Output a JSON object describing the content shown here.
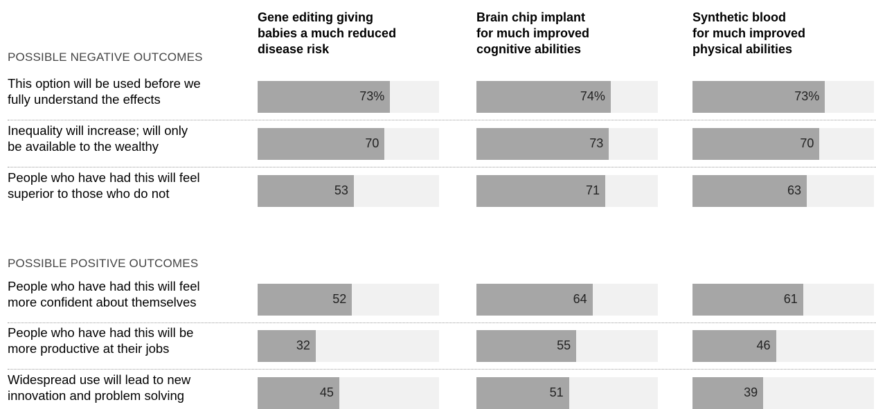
{
  "chart_data": {
    "type": "bar",
    "columns": [
      "Gene editing giving\nbabies a much reduced\ndisease risk",
      "Brain chip implant\nfor much improved\ncognitive abilities",
      "Synthetic blood\nfor much improved\nphysical abilities"
    ],
    "sections": [
      {
        "title": "POSSIBLE NEGATIVE OUTCOMES",
        "rows": [
          {
            "label": "This option will be used before we\nfully understand the effects",
            "values": [
              73,
              74,
              73
            ],
            "display": [
              "73%",
              "74%",
              "73%"
            ]
          },
          {
            "label": "Inequality will increase; will only\nbe available to the wealthy",
            "values": [
              70,
              73,
              70
            ],
            "display": [
              "70",
              "73",
              "70"
            ]
          },
          {
            "label": "People who have had this will feel\nsuperior to those who do not",
            "values": [
              53,
              71,
              63
            ],
            "display": [
              "53",
              "71",
              "63"
            ]
          }
        ]
      },
      {
        "title": "POSSIBLE POSITIVE OUTCOMES",
        "rows": [
          {
            "label": "People who have had this will feel\nmore confident about themselves",
            "values": [
              52,
              64,
              61
            ],
            "display": [
              "52",
              "64",
              "61"
            ]
          },
          {
            "label": "People who have had this will be\nmore productive at their jobs",
            "values": [
              32,
              55,
              46
            ],
            "display": [
              "32",
              "55",
              "46"
            ]
          },
          {
            "label": "Widespread use will lead to new\ninnovation and problem solving",
            "values": [
              45,
              51,
              39
            ],
            "display": [
              "45",
              "51",
              "39"
            ]
          }
        ]
      }
    ],
    "xlim": [
      0,
      100
    ],
    "bar_color": "#a6a6a6",
    "track_color": "#f1f1f1"
  }
}
